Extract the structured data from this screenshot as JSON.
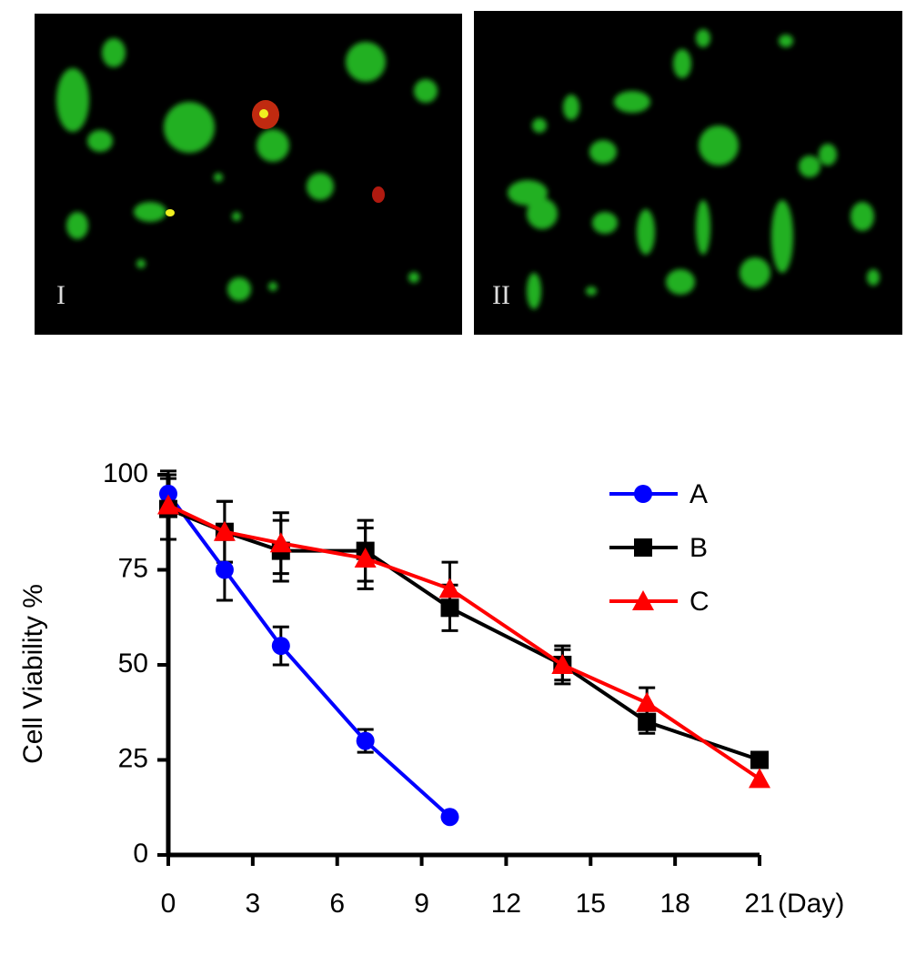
{
  "panels": [
    {
      "label": "I"
    },
    {
      "label": "II"
    }
  ],
  "chart_data": {
    "type": "line",
    "xlabel": "(Day)",
    "ylabel": "Cell Viability %",
    "xlim": [
      0,
      21
    ],
    "xticks": [
      0,
      3,
      6,
      9,
      12,
      15,
      18,
      21
    ],
    "ylim": [
      0,
      100
    ],
    "yticks": [
      0,
      25,
      50,
      75,
      100
    ],
    "legend": "upper right",
    "series": [
      {
        "name": "A",
        "color": "#0000ff",
        "marker": "circle",
        "x": [
          0,
          2,
          4,
          7,
          10
        ],
        "values": [
          95,
          75,
          55,
          30,
          10
        ],
        "errors": [
          5,
          8,
          5,
          3,
          0
        ]
      },
      {
        "name": "B",
        "color": "#000000",
        "marker": "square",
        "x": [
          0,
          2,
          4,
          7,
          10,
          14,
          17,
          21
        ],
        "values": [
          91,
          85,
          80,
          80,
          65,
          50,
          35,
          25
        ],
        "errors": [
          8,
          8,
          8,
          8,
          6,
          5,
          3,
          0
        ]
      },
      {
        "name": "C",
        "color": "#ff0000",
        "marker": "triangle",
        "x": [
          0,
          2,
          4,
          7,
          10,
          14,
          17,
          21
        ],
        "values": [
          92,
          85,
          82,
          78,
          70,
          50,
          40,
          20
        ],
        "errors": [
          9,
          8,
          8,
          8,
          7,
          4,
          4,
          0
        ]
      }
    ]
  }
}
